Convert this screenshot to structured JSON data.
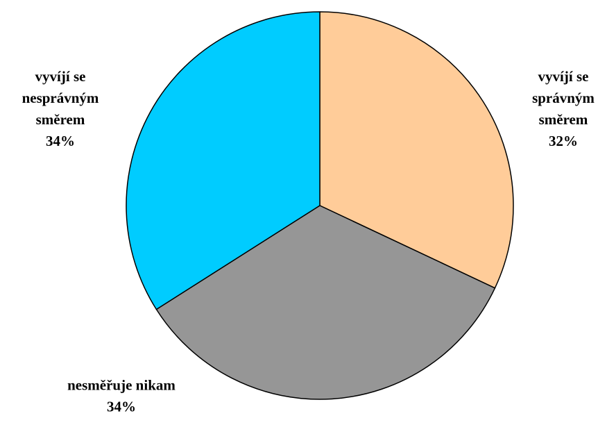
{
  "chart_data": {
    "type": "pie",
    "title": "",
    "legend": "none",
    "slices": [
      {
        "label_lines": [
          "vyvíjí se",
          "správným",
          "směrem"
        ],
        "percent_label": "32%",
        "value": 32,
        "color": "#FFCC99"
      },
      {
        "label_lines": [
          "nesměřuje nikam"
        ],
        "percent_label": "34%",
        "value": 34,
        "color": "#969696"
      },
      {
        "label_lines": [
          "vyvíjí se",
          "nesprávným",
          "směrem"
        ],
        "percent_label": "34%",
        "value": 34,
        "color": "#00CCFF"
      }
    ],
    "outline_color": "#000000"
  }
}
